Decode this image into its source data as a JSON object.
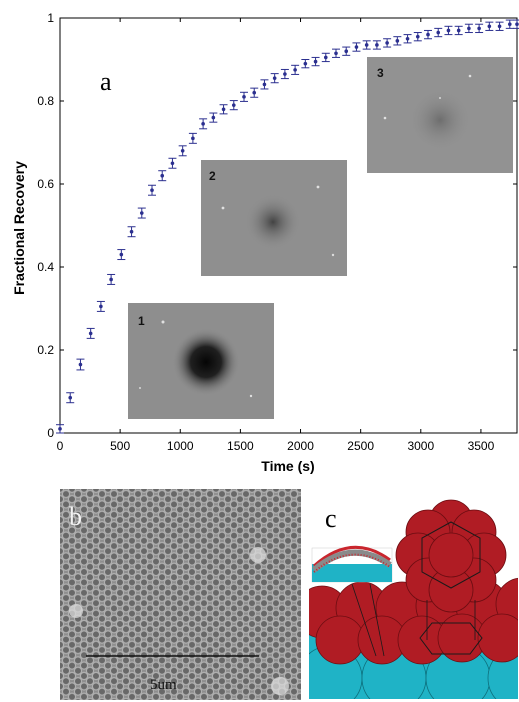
{
  "chart_data": {
    "type": "scatter",
    "title": "",
    "xlabel": "Time (s)",
    "ylabel": "Fractional Recovery",
    "xlim": [
      0,
      3800
    ],
    "ylim": [
      0,
      1
    ],
    "xticks": [
      0,
      500,
      1000,
      1500,
      2000,
      2500,
      3000,
      3500
    ],
    "yticks": [
      0,
      0.2,
      0.4,
      0.6,
      0.8,
      1
    ],
    "ytick_labels": [
      "0",
      "0.2",
      "0.4",
      "0.6",
      "0.8",
      "1"
    ],
    "error_bars": true,
    "marker_color": "#2b2f8f",
    "x": [
      0,
      85,
      170,
      255,
      340,
      425,
      510,
      595,
      680,
      765,
      850,
      935,
      1020,
      1105,
      1190,
      1275,
      1360,
      1445,
      1530,
      1615,
      1700,
      1785,
      1870,
      1955,
      2040,
      2125,
      2210,
      2295,
      2380,
      2465,
      2550,
      2635,
      2720,
      2805,
      2890,
      2975,
      3060,
      3145,
      3230,
      3315,
      3400,
      3485,
      3570,
      3655,
      3740,
      3800
    ],
    "y": [
      0.01,
      0.085,
      0.165,
      0.24,
      0.305,
      0.37,
      0.43,
      0.485,
      0.53,
      0.585,
      0.62,
      0.65,
      0.68,
      0.71,
      0.745,
      0.76,
      0.78,
      0.79,
      0.81,
      0.82,
      0.84,
      0.855,
      0.865,
      0.875,
      0.89,
      0.895,
      0.905,
      0.915,
      0.92,
      0.93,
      0.935,
      0.935,
      0.94,
      0.945,
      0.95,
      0.955,
      0.96,
      0.965,
      0.97,
      0.97,
      0.975,
      0.975,
      0.98,
      0.98,
      0.985,
      0.985
    ],
    "err": [
      0.01,
      0.012,
      0.013,
      0.012,
      0.012,
      0.012,
      0.012,
      0.012,
      0.012,
      0.012,
      0.012,
      0.012,
      0.012,
      0.012,
      0.012,
      0.011,
      0.011,
      0.011,
      0.011,
      0.011,
      0.011,
      0.011,
      0.011,
      0.011,
      0.01,
      0.01,
      0.01,
      0.01,
      0.01,
      0.01,
      0.01,
      0.01,
      0.01,
      0.01,
      0.01,
      0.01,
      0.01,
      0.01,
      0.01,
      0.01,
      0.01,
      0.01,
      0.01,
      0.01,
      0.01,
      0.01
    ]
  },
  "panels": {
    "a_label": "a",
    "b_label": "b",
    "c_label": "c"
  },
  "insets": [
    {
      "label": "1",
      "spot_intensity": 0.95
    },
    {
      "label": "2",
      "spot_intensity": 0.55
    },
    {
      "label": "3",
      "spot_intensity": 0.3
    }
  ],
  "scale_bar": {
    "label": "5um"
  },
  "colors": {
    "marker": "#2b2f8f",
    "particle_red": "#b01c24",
    "substrate_cyan": "#1fb3c6",
    "micrograph_gray": "#8c8c8c"
  }
}
